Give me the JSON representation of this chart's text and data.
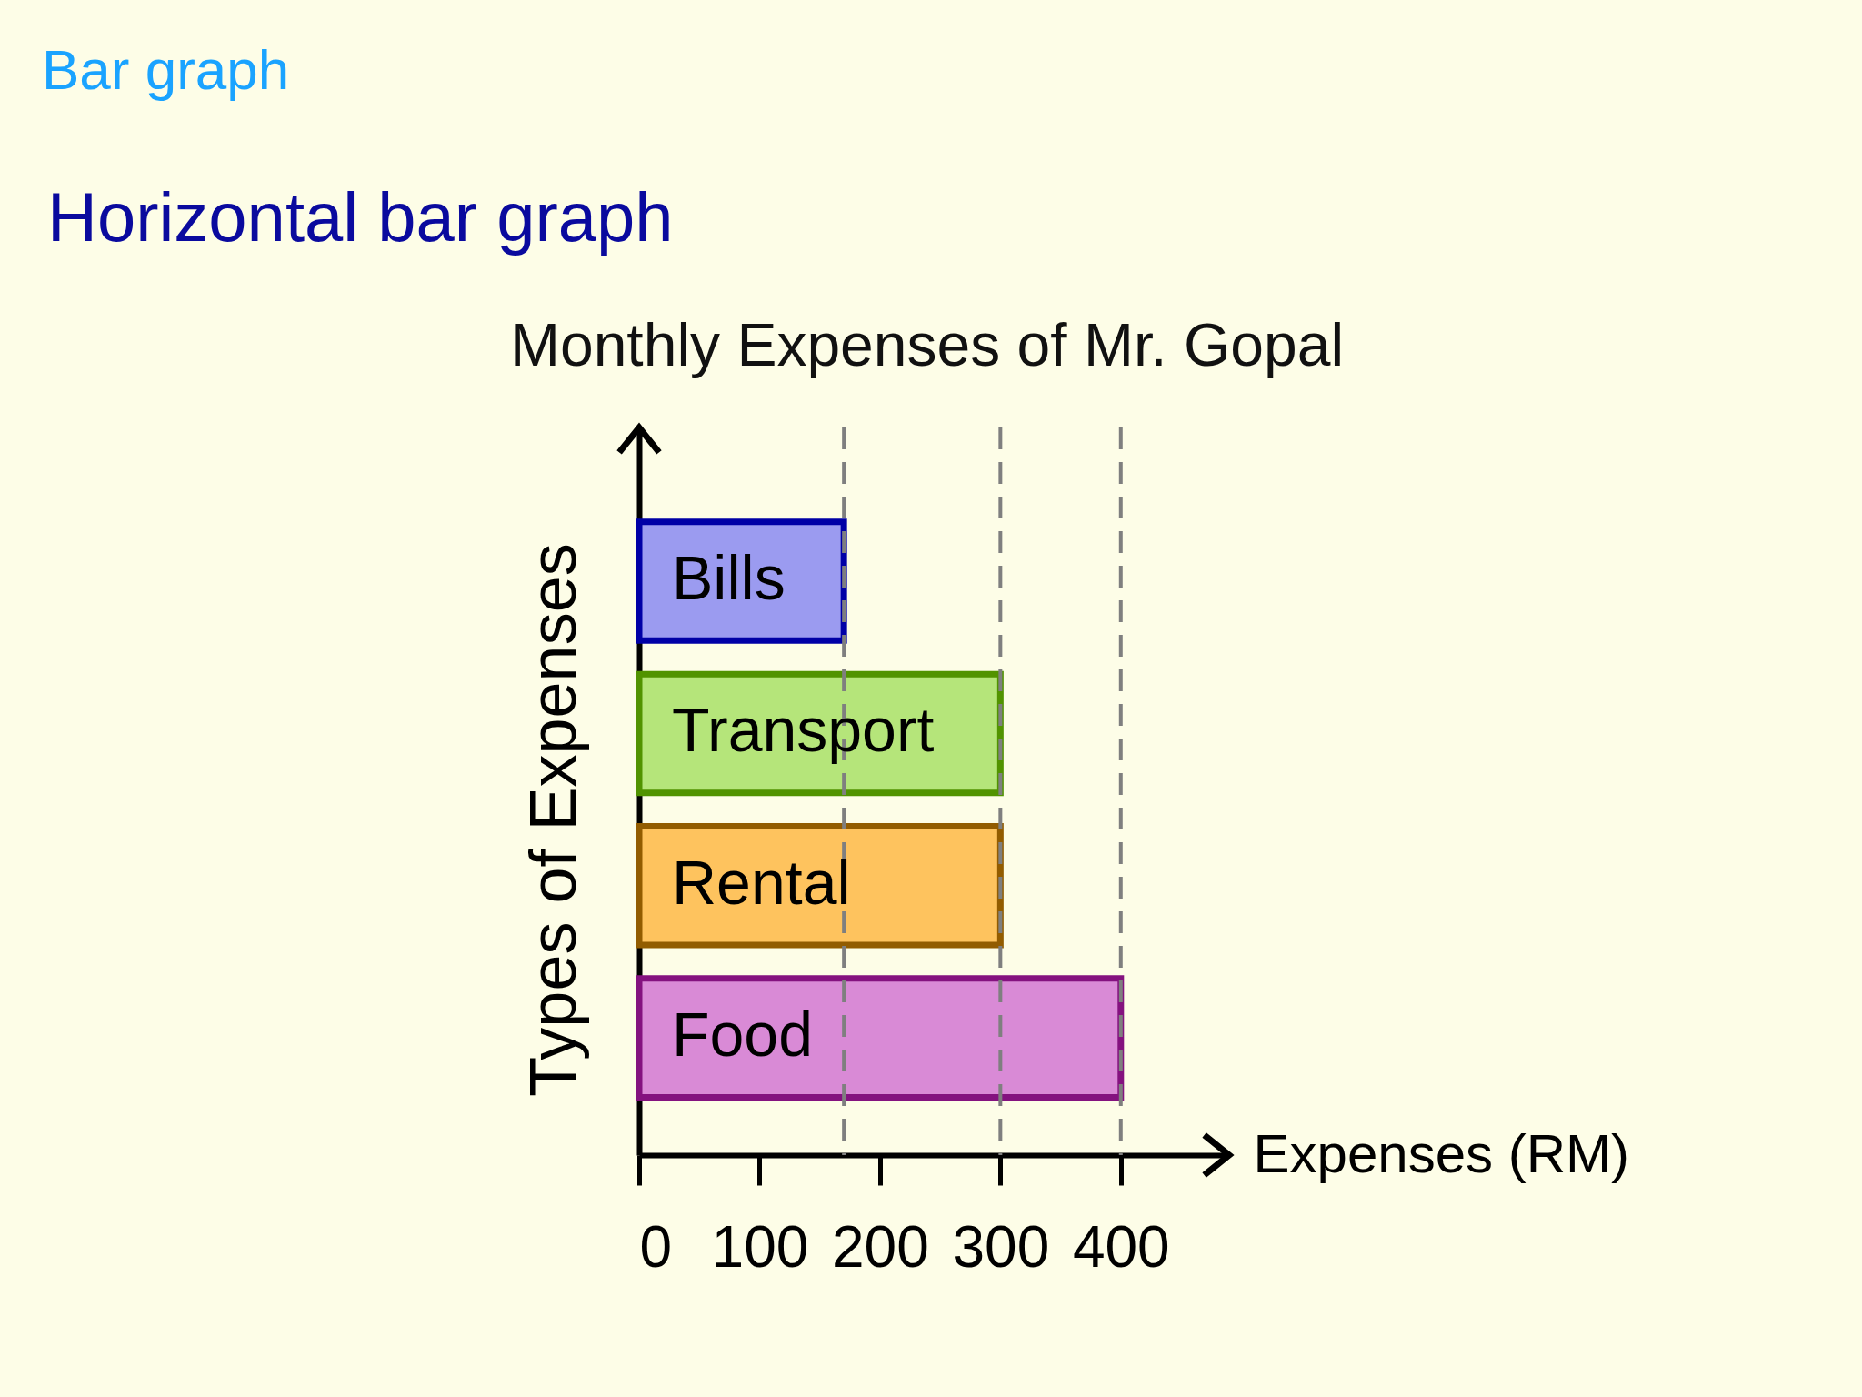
{
  "chart_data": {
    "type": "bar",
    "orientation": "horizontal",
    "title": "Monthly Expenses of Mr. Gopal",
    "xlabel": "Expenses (RM)",
    "ylabel": "Types of Expenses",
    "annotations": [
      "Bar graph",
      "Horizontal bar graph"
    ],
    "categories": [
      "Bills",
      "Transport",
      "Rental",
      "Food"
    ],
    "values": [
      170,
      300,
      300,
      400
    ],
    "colors": [
      "#9b9bf0",
      "#b5e57a",
      "#fec35e",
      "#d98ad6"
    ],
    "xlim": [
      0,
      490
    ],
    "xticks": [
      0,
      100,
      200,
      300,
      400
    ],
    "ref_lines": [
      {
        "axis": "x",
        "value": 170,
        "color": "#7f7f7f",
        "line_style": "dashed"
      },
      {
        "axis": "x",
        "value": 300,
        "color": "#7f7f7f",
        "line_style": "dashed"
      },
      {
        "axis": "x",
        "value": 400,
        "color": "#7f7f7f",
        "line_style": "dashed"
      }
    ]
  }
}
